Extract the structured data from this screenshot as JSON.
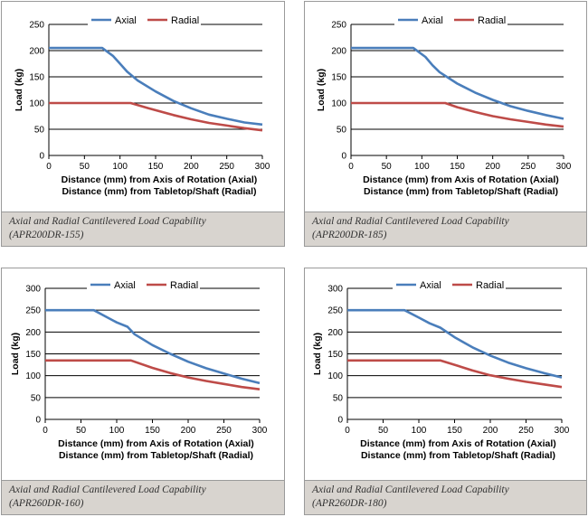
{
  "colors": {
    "axial": "#4a7ebb",
    "radial": "#be4b48",
    "grid": "#000000",
    "caption_bg": "#d8d4cf"
  },
  "chart_data": [
    {
      "type": "line",
      "ylabel": "Load (kg)",
      "xlabel_lines": [
        "Distance (mm) from Axis of Rotation (Axial)",
        "Distance (mm) from Tabletop/Shaft (Radial)"
      ],
      "xlim": [
        0,
        300
      ],
      "ylim": [
        0,
        250
      ],
      "xticks": [
        0,
        50,
        100,
        150,
        200,
        250,
        300
      ],
      "yticks": [
        0,
        50,
        100,
        150,
        200,
        250
      ],
      "legend": [
        "Axial",
        "Radial"
      ],
      "series": [
        {
          "name": "Axial",
          "color": "#4a7ebb",
          "points": [
            [
              0,
              205
            ],
            [
              75,
              205
            ],
            [
              90,
              190
            ],
            [
              100,
              175
            ],
            [
              110,
              160
            ],
            [
              125,
              143
            ],
            [
              150,
              122
            ],
            [
              175,
              104
            ],
            [
              200,
              90
            ],
            [
              225,
              78
            ],
            [
              250,
              70
            ],
            [
              275,
              63
            ],
            [
              300,
              59
            ]
          ]
        },
        {
          "name": "Radial",
          "color": "#be4b48",
          "points": [
            [
              0,
              100
            ],
            [
              115,
              100
            ],
            [
              140,
              90
            ],
            [
              175,
              77
            ],
            [
              200,
              69
            ],
            [
              225,
              62
            ],
            [
              250,
              57
            ],
            [
              275,
              52
            ],
            [
              300,
              48
            ]
          ]
        }
      ],
      "caption_lines": [
        "Axial and Radial Cantilevered Load Capability",
        "(APR200DR-155)"
      ]
    },
    {
      "type": "line",
      "ylabel": "Load (kg)",
      "xlabel_lines": [
        "Distance (mm) from Axis of Rotation (Axial)",
        "Distance (mm) from Tabletop/Shaft (Radial)"
      ],
      "xlim": [
        0,
        300
      ],
      "ylim": [
        0,
        250
      ],
      "xticks": [
        0,
        50,
        100,
        150,
        200,
        250,
        300
      ],
      "yticks": [
        0,
        50,
        100,
        150,
        200,
        250
      ],
      "legend": [
        "Axial",
        "Radial"
      ],
      "series": [
        {
          "name": "Axial",
          "color": "#4a7ebb",
          "points": [
            [
              0,
              205
            ],
            [
              88,
              205
            ],
            [
              105,
              188
            ],
            [
              115,
              172
            ],
            [
              125,
              159
            ],
            [
              150,
              137
            ],
            [
              175,
              120
            ],
            [
              200,
              106
            ],
            [
              225,
              94
            ],
            [
              250,
              85
            ],
            [
              275,
              77
            ],
            [
              300,
              70
            ]
          ]
        },
        {
          "name": "Radial",
          "color": "#be4b48",
          "points": [
            [
              0,
              100
            ],
            [
              133,
              100
            ],
            [
              150,
              92
            ],
            [
              175,
              83
            ],
            [
              200,
              75
            ],
            [
              225,
              69
            ],
            [
              250,
              64
            ],
            [
              275,
              59
            ],
            [
              300,
              55
            ]
          ]
        }
      ],
      "caption_lines": [
        "Axial and Radial Cantilevered Load Capability",
        "(APR200DR-185)"
      ]
    },
    {
      "type": "line",
      "ylabel": "Load (kg)",
      "xlabel_lines": [
        "Distance (mm) from Axis of Rotation (Axial)",
        "Distance (mm) from Tabletop/Shaft (Radial)"
      ],
      "xlim": [
        0,
        300
      ],
      "ylim": [
        0,
        300
      ],
      "xticks": [
        0,
        50,
        100,
        150,
        200,
        250,
        300
      ],
      "yticks": [
        0,
        50,
        100,
        150,
        200,
        250,
        300
      ],
      "legend": [
        "Axial",
        "Radial"
      ],
      "series": [
        {
          "name": "Axial",
          "color": "#4a7ebb",
          "points": [
            [
              0,
              250
            ],
            [
              68,
              250
            ],
            [
              85,
              235
            ],
            [
              100,
              222
            ],
            [
              115,
              212
            ],
            [
              125,
              195
            ],
            [
              150,
              170
            ],
            [
              175,
              150
            ],
            [
              200,
              132
            ],
            [
              225,
              117
            ],
            [
              250,
              105
            ],
            [
              275,
              93
            ],
            [
              300,
              83
            ]
          ]
        },
        {
          "name": "Radial",
          "color": "#be4b48",
          "points": [
            [
              0,
              135
            ],
            [
              120,
              135
            ],
            [
              150,
              118
            ],
            [
              175,
              106
            ],
            [
              200,
              96
            ],
            [
              225,
              88
            ],
            [
              250,
              81
            ],
            [
              275,
              74
            ],
            [
              300,
              69
            ]
          ]
        }
      ],
      "caption_lines": [
        "Axial and Radial Cantilevered Load Capability",
        "(APR260DR-160)"
      ]
    },
    {
      "type": "line",
      "ylabel": "Load (kg)",
      "xlabel_lines": [
        "Distance (mm) from Axis of Rotation (Axial)",
        "Distance (mm) from Tabletop/Shaft (Radial)"
      ],
      "xlim": [
        0,
        300
      ],
      "ylim": [
        0,
        300
      ],
      "xticks": [
        0,
        50,
        100,
        150,
        200,
        250,
        300
      ],
      "yticks": [
        0,
        50,
        100,
        150,
        200,
        250,
        300
      ],
      "legend": [
        "Axial",
        "Radial"
      ],
      "series": [
        {
          "name": "Axial",
          "color": "#4a7ebb",
          "points": [
            [
              0,
              250
            ],
            [
              80,
              250
            ],
            [
              100,
              233
            ],
            [
              115,
              220
            ],
            [
              130,
              210
            ],
            [
              150,
              188
            ],
            [
              175,
              165
            ],
            [
              200,
              146
            ],
            [
              225,
              130
            ],
            [
              250,
              117
            ],
            [
              275,
              106
            ],
            [
              300,
              96
            ]
          ]
        },
        {
          "name": "Radial",
          "color": "#be4b48",
          "points": [
            [
              0,
              135
            ],
            [
              130,
              135
            ],
            [
              150,
              125
            ],
            [
              175,
              112
            ],
            [
              200,
              101
            ],
            [
              225,
              93
            ],
            [
              250,
              86
            ],
            [
              275,
              80
            ],
            [
              300,
              74
            ]
          ]
        }
      ],
      "caption_lines": [
        "Axial and Radial Cantilevered Load Capability",
        "(APR260DR-180)"
      ]
    }
  ]
}
